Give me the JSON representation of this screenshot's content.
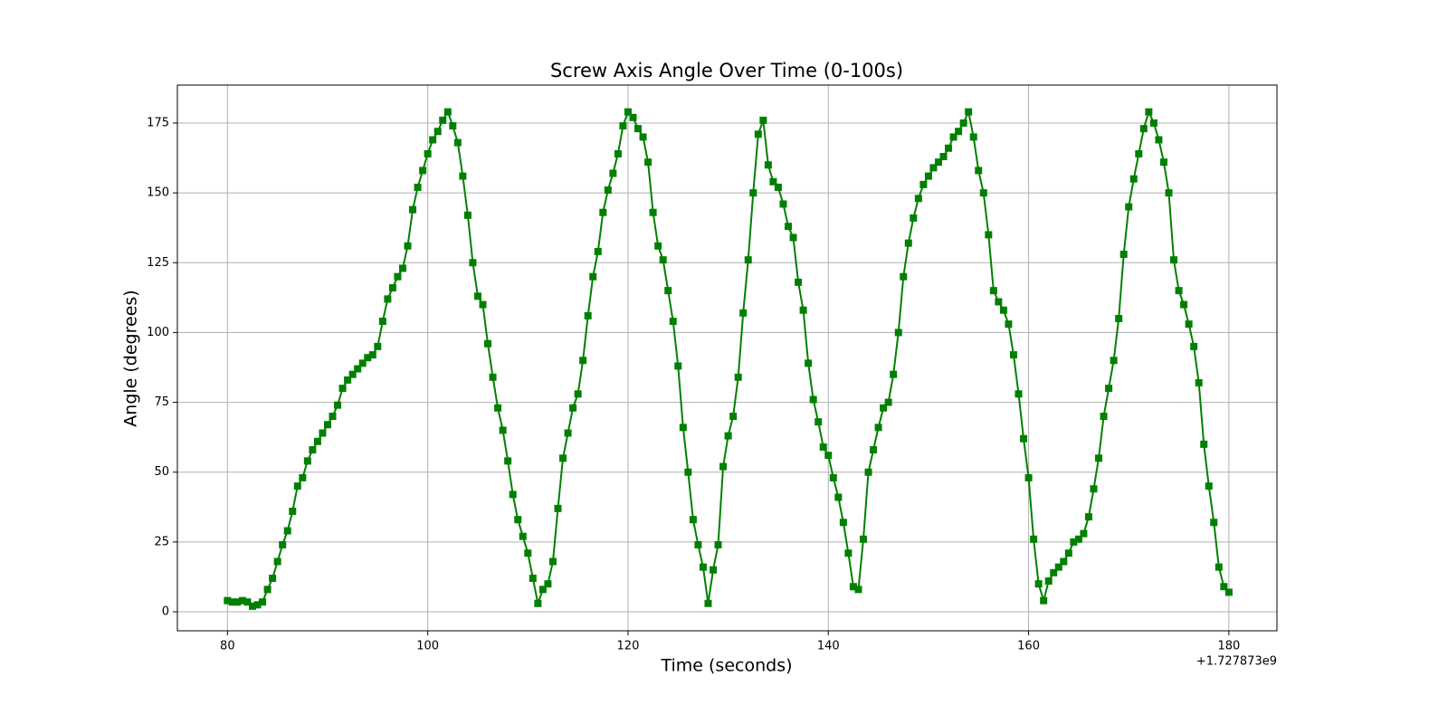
{
  "chart_data": {
    "type": "line",
    "title": "Screw Axis Angle Over Time (0-100s)",
    "x_label": "Time (seconds)",
    "y_label": "Angle (degrees)",
    "x_offset_label": "+1.727873e9",
    "x": [
      80,
      80.5,
      81,
      81.5,
      82,
      82.5,
      83,
      83.5,
      84,
      84.5,
      85,
      85.5,
      86,
      86.5,
      87,
      87.5,
      88,
      88.5,
      89,
      89.5,
      90,
      90.5,
      91,
      91.5,
      92,
      92.5,
      93,
      93.5,
      94,
      94.5,
      95,
      95.5,
      96,
      96.5,
      97,
      97.5,
      98,
      98.5,
      99,
      99.5,
      100,
      100.5,
      101,
      101.5,
      102,
      102.5,
      103,
      103.5,
      104,
      104.5,
      105,
      105.5,
      106,
      106.5,
      107,
      107.5,
      108,
      108.5,
      109,
      109.5,
      110,
      110.5,
      111,
      111.5,
      112,
      112.5,
      113,
      113.5,
      114,
      114.5,
      115,
      115.5,
      116,
      116.5,
      117,
      117.5,
      118,
      118.5,
      119,
      119.5,
      120,
      120.5,
      121,
      121.5,
      122,
      122.5,
      123,
      123.5,
      124,
      124.5,
      125,
      125.5,
      126,
      126.5,
      127,
      127.5,
      128,
      128.5,
      129,
      129.5,
      130,
      130.5,
      131,
      131.5,
      132,
      132.5,
      133,
      133.5,
      134,
      134.5,
      135,
      135.5,
      136,
      136.5,
      137,
      137.5,
      138,
      138.5,
      139,
      139.5,
      140,
      140.5,
      141,
      141.5,
      142,
      142.5,
      143,
      143.5,
      144,
      144.5,
      145,
      145.5,
      146,
      146.5,
      147,
      147.5,
      148,
      148.5,
      149,
      149.5,
      150,
      150.5,
      151,
      151.5,
      152,
      152.5,
      153,
      153.5,
      154,
      154.5,
      155,
      155.5,
      156,
      156.5,
      157,
      157.5,
      158,
      158.5,
      159,
      159.5,
      160,
      160.5,
      161,
      161.5,
      162,
      162.5,
      163,
      163.5,
      164,
      164.5,
      165,
      165.5,
      166,
      166.5,
      167,
      167.5,
      168,
      168.5,
      169,
      169.5,
      170,
      170.5,
      171,
      171.5,
      172,
      172.5,
      173,
      173.5,
      174,
      174.5,
      175,
      175.5,
      176,
      176.5,
      177,
      177.5,
      178,
      178.5,
      179,
      179.5,
      180
    ],
    "series": [
      {
        "color": "#008000",
        "values": [
          4,
          3.5,
          3.5,
          4,
          3.5,
          2,
          2.5,
          3.5,
          8,
          12,
          18,
          24,
          29,
          36,
          45,
          48,
          54,
          58,
          61,
          64,
          67,
          70,
          74,
          80,
          83,
          85,
          87,
          89,
          91,
          92,
          95,
          104,
          112,
          116,
          120,
          123,
          131,
          144,
          152,
          158,
          164,
          169,
          172,
          176,
          179,
          174,
          168,
          156,
          142,
          125,
          113,
          110,
          96,
          84,
          73,
          65,
          54,
          42,
          33,
          27,
          21,
          12,
          3,
          8,
          10,
          18,
          37,
          55,
          64,
          73,
          78,
          90,
          106,
          120,
          129,
          143,
          151,
          157,
          164,
          174,
          179,
          177,
          173,
          170,
          161,
          143,
          131,
          126,
          115,
          104,
          88,
          66,
          50,
          33,
          24,
          16,
          3,
          15,
          24,
          52,
          63,
          70,
          84,
          107,
          126,
          150,
          171,
          176,
          160,
          154,
          152,
          146,
          138,
          134,
          118,
          108,
          89,
          76,
          68,
          59,
          56,
          48,
          41,
          32,
          21,
          9,
          8,
          26,
          50,
          58,
          66,
          73,
          75,
          85,
          100,
          120,
          132,
          141,
          148,
          153,
          156,
          159,
          161,
          163,
          166,
          170,
          172,
          175,
          179,
          170,
          158,
          150,
          135,
          115,
          111,
          108,
          103,
          92,
          78,
          62,
          48,
          26,
          10,
          4,
          11,
          14,
          16,
          18,
          21,
          25,
          26,
          28,
          34,
          44,
          55,
          70,
          80,
          90,
          105,
          128,
          145,
          155,
          164,
          173,
          179,
          175,
          169,
          161,
          150,
          126,
          115,
          110,
          103,
          95,
          82,
          60,
          45,
          32,
          16,
          9,
          7
        ]
      }
    ],
    "xlim": [
      75,
      184.8
    ],
    "ylim": [
      -6.8,
      188.6
    ],
    "xticks": [
      80,
      100,
      120,
      140,
      160,
      180
    ],
    "yticks": [
      0,
      25,
      50,
      75,
      100,
      125,
      150,
      175
    ],
    "grid": true
  }
}
